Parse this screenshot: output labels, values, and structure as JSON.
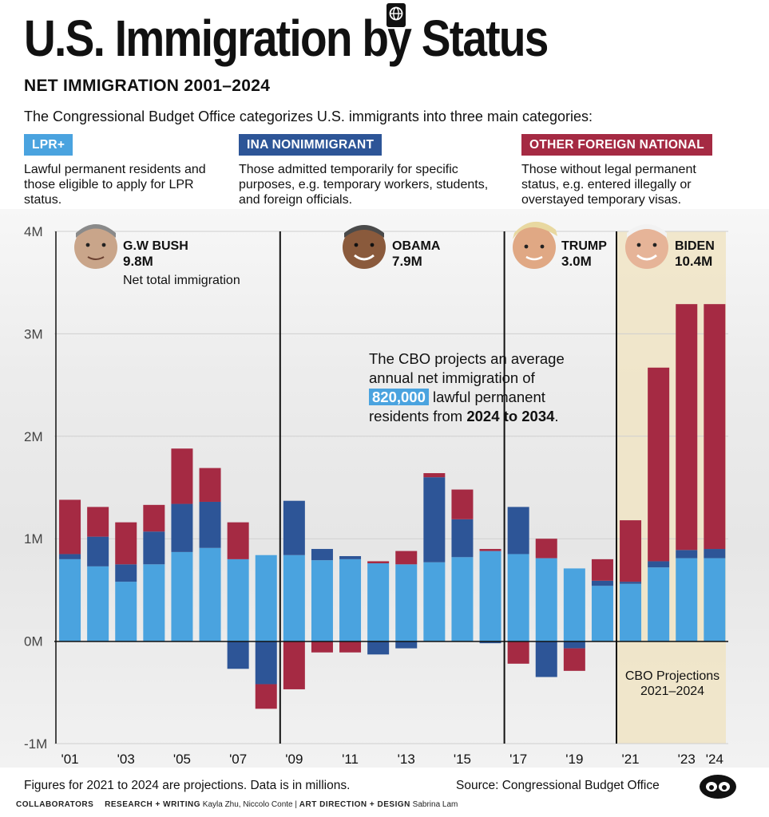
{
  "title": "U.S. Immigration by Status",
  "subtitle": "NET IMMIGRATION 2001–2024",
  "intro": "The Congressional Budget Office categorizes U.S. immigrants into three main categories:",
  "categories": [
    {
      "label": "LPR+",
      "color": "#4aa3df",
      "description": "Lawful permanent residents and those eligible to apply for LPR status."
    },
    {
      "label": "INA NONIMMIGRANT",
      "color": "#2d5597",
      "description": "Those admitted temporarily for specific purposes, e.g. temporary workers, students, and foreign officials."
    },
    {
      "label": "OTHER FOREIGN NATIONAL",
      "color": "#a52a43",
      "description": "Those without legal permanent status, e.g. entered illegally or overstayed temporary visas."
    }
  ],
  "presidents": [
    {
      "name": "G.W BUSH",
      "value": "9.8M",
      "note": "Net total immigration",
      "icon": "bush-face-icon"
    },
    {
      "name": "OBAMA",
      "value": "7.9M",
      "note": "",
      "icon": "obama-face-icon"
    },
    {
      "name": "TRUMP",
      "value": "3.0M",
      "note": "",
      "icon": "trump-face-icon"
    },
    {
      "name": "BIDEN",
      "value": "10.4M",
      "note": "",
      "icon": "biden-face-icon"
    }
  ],
  "callout": {
    "line1": "The CBO projects an average",
    "line2": "annual net immigration of",
    "highlight": "820,000",
    "line3_rest": "lawful permanent",
    "line4_pre": "residents from",
    "range": "2024 to 2034",
    "line4_end": "."
  },
  "projection_note": "CBO Projections 2021–2024",
  "footnote": "Figures for 2021 to 2024 are projections. Data is in millions.",
  "source": "Source: Congressional Budget Office",
  "credits": {
    "collaborators": "COLLABORATORS",
    "research_label": "RESEARCH + WRITING",
    "research_names": "Kayla Zhu, Niccolo Conte",
    "sep": "|",
    "art_label": "ART DIRECTION + DESIGN",
    "art_names": "Sabrina Lam"
  },
  "chart_data": {
    "type": "bar",
    "stacked": true,
    "categories": [
      "2001",
      "2002",
      "2003",
      "2004",
      "2005",
      "2006",
      "2007",
      "2008",
      "2009",
      "2010",
      "2011",
      "2012",
      "2013",
      "2014",
      "2015",
      "2016",
      "2017",
      "2018",
      "2019",
      "2020",
      "2021",
      "2022",
      "2023",
      "2024"
    ],
    "x_tick_labels": [
      "'01",
      "",
      "'03",
      "",
      "'05",
      "",
      "'07",
      "",
      "'09",
      "",
      "'11",
      "",
      "'13",
      "",
      "'15",
      "",
      "'17",
      "",
      "'19",
      "",
      "'21",
      "",
      "'23",
      "'24"
    ],
    "series": [
      {
        "name": "LPR+",
        "color": "#4aa3df",
        "values": [
          0.8,
          0.73,
          0.58,
          0.75,
          0.87,
          0.91,
          0.8,
          0.84,
          0.84,
          0.79,
          0.8,
          0.76,
          0.75,
          0.77,
          0.82,
          0.88,
          0.85,
          0.81,
          0.71,
          0.54,
          0.56,
          0.72,
          0.81,
          0.81
        ]
      },
      {
        "name": "INA NONIMMIGRANT",
        "color": "#2d5597",
        "values": [
          0.05,
          0.29,
          0.17,
          0.32,
          0.47,
          0.45,
          -0.27,
          -0.42,
          0.53,
          0.11,
          0.03,
          -0.13,
          -0.07,
          0.83,
          0.37,
          -0.02,
          0.46,
          -0.35,
          -0.07,
          0.05,
          0.02,
          0.06,
          0.08,
          0.09
        ]
      },
      {
        "name": "OTHER FOREIGN NATIONAL",
        "color": "#a52a43",
        "values": [
          0.53,
          0.29,
          0.41,
          0.26,
          0.54,
          0.33,
          0.36,
          -0.24,
          -0.47,
          -0.11,
          -0.11,
          0.02,
          0.13,
          0.04,
          0.29,
          0.02,
          -0.22,
          0.19,
          -0.22,
          0.21,
          0.6,
          1.89,
          2.4,
          2.39
        ]
      }
    ],
    "y_tick_labels": [
      "4M",
      "3M",
      "2M",
      "1M",
      "0M",
      "-1M"
    ],
    "ylim": [
      -1,
      4
    ],
    "grid": true,
    "period_dividers_after": [
      "2008",
      "2016",
      "2020"
    ],
    "projection_years": [
      "2021",
      "2022",
      "2023",
      "2024"
    ]
  }
}
